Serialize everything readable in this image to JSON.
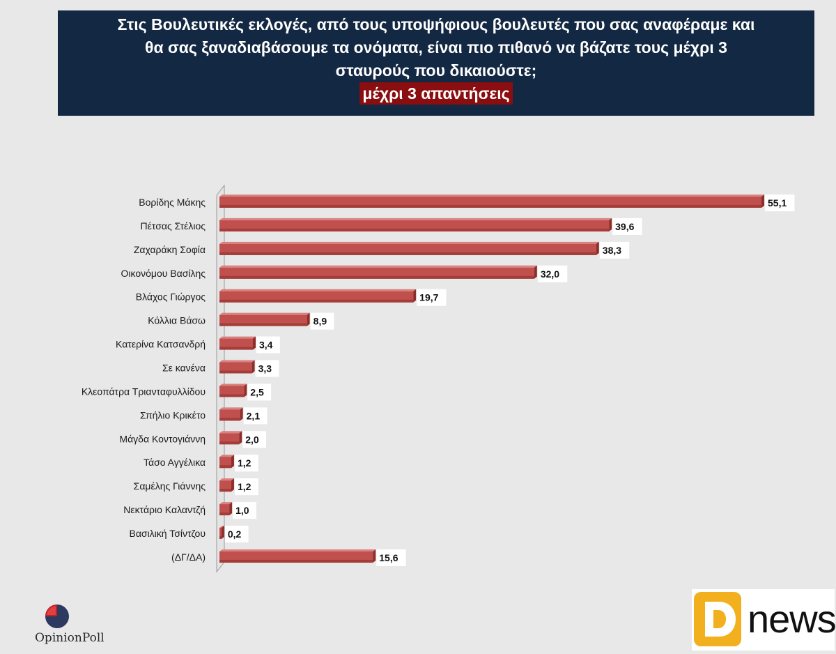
{
  "header": {
    "title_lines": [
      "Στις Βουλευτικές εκλογές, από τους υποψήφιους βουλευτές που σας αναφέραμε και",
      "θα σας ξαναδιαβάσουμε τα ονόματα, είναι πιο πιθανό να βάζατε τους μέχρι 3",
      "σταυρούς που δικαιούστε;"
    ],
    "subtitle": "μέχρι 3 απαντήσεις"
  },
  "chart_data": {
    "type": "bar",
    "orientation": "horizontal",
    "categories": [
      "Βορίδης Μάκης",
      "Πέτσας Στέλιος",
      "Ζαχαράκη Σοφία",
      "Οικονόμου Βασίλης",
      "Βλάχος Γιώργος",
      "Κόλλια Βάσω",
      "Κατερίνα Κατσανδρή",
      "Σε κανένα",
      "Κλεοπάτρα Τριανταφυλλίδου",
      "Σπήλιο Κρικέτο",
      "Μάγδα Κοντογιάννη",
      "Τάσο Αγγέλικα",
      "Σαμέλης Γιάννης",
      "Νεκτάριο Καλαντζή",
      "Βασιλική Τσίντζου",
      "(ΔΓ/ΔΑ)"
    ],
    "values": [
      55.1,
      39.6,
      38.3,
      32.0,
      19.7,
      8.9,
      3.4,
      3.3,
      2.5,
      2.1,
      2.0,
      1.2,
      1.2,
      1.0,
      0.2,
      15.6
    ],
    "value_labels": [
      "55,1",
      "39,6",
      "38,3",
      "32,0",
      "19,7",
      "8,9",
      "3,4",
      "3,3",
      "2,5",
      "2,1",
      "2,0",
      "1,2",
      "1,2",
      "1,0",
      "0,2",
      "15,6"
    ],
    "xlim": [
      0,
      55.1
    ],
    "bar_color": "#c0504d",
    "grid": false
  },
  "logos": {
    "opinionpoll": {
      "text_a": "Opinion",
      "text_b": "Poll"
    },
    "dnews": {
      "mark": "D",
      "text": "news"
    }
  },
  "colors": {
    "header_bg": "#132843",
    "subtitle_bg": "#8a0d10",
    "page_bg": "#e8e8e8"
  }
}
